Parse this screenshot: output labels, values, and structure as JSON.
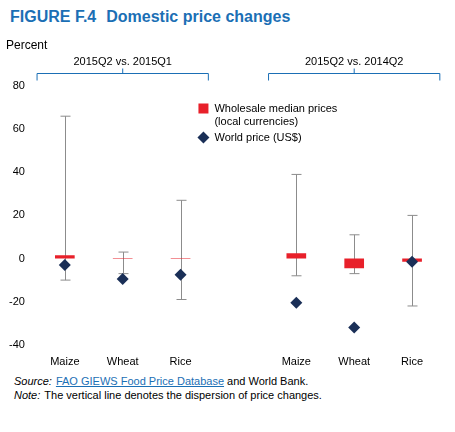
{
  "chart_data": {
    "type": "bar",
    "title": {
      "label": "FIGURE F.4",
      "text": "Domestic price changes"
    },
    "y_label": "Percent",
    "groups": [
      "2015Q2 vs. 2015Q1",
      "2015Q2 vs. 2014Q2"
    ],
    "categories": [
      "Maize",
      "Wheat",
      "Rice",
      null,
      "Maize",
      "Wheat",
      "Rice"
    ],
    "series": [
      {
        "name": "Wholesale median prices (local currencies)",
        "type": "bar",
        "color": "#e8202a",
        "values": [
          1.5,
          0.3,
          0.2,
          null,
          2.5,
          -4.5,
          -1.5
        ],
        "dispersion": {
          "low": [
            -10,
            -7,
            -19,
            null,
            -8,
            -7,
            -22
          ],
          "high": [
            66,
            3,
            27,
            null,
            39,
            11,
            20
          ]
        }
      },
      {
        "name": "World price (US$)",
        "type": "scatter",
        "marker": "diamond",
        "color": "#1a2f57",
        "values": [
          -3,
          -9.5,
          -7.5,
          null,
          -20.5,
          -32,
          -1.5
        ]
      }
    ],
    "ylim": [
      -40,
      80
    ],
    "yticks": [
      -40,
      -20,
      0,
      20,
      40,
      60,
      80
    ],
    "grid": false,
    "legend": "upper center",
    "source": {
      "label": "Source:",
      "link": "FAO GIEWS Food Price Database",
      "text": "and World Bank."
    },
    "note": {
      "label": "Note:",
      "text": "The vertical line denotes the dispersion of price changes."
    }
  }
}
